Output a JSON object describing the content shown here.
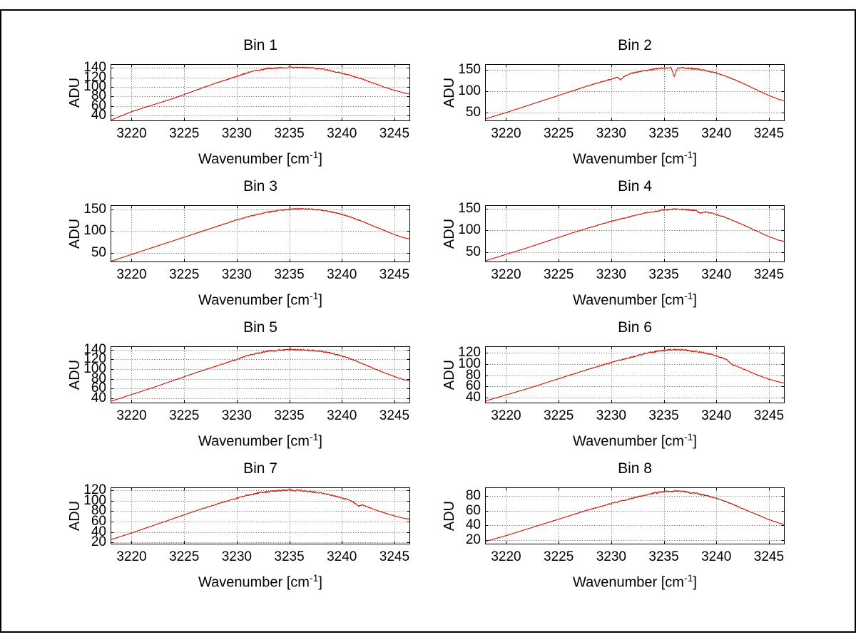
{
  "figure": {
    "background": "#ffffff",
    "frame_color": "#000000"
  },
  "chart_data": [
    {
      "type": "line",
      "title": "Bin 1",
      "xlabel": "Wavenumber [cm^{-1}]",
      "ylabel": "ADU",
      "xlim": [
        3218,
        3246.5
      ],
      "ylim": [
        28,
        148
      ],
      "xticks": [
        3220,
        3225,
        3230,
        3235,
        3240,
        3245
      ],
      "yticks": [
        40,
        60,
        80,
        100,
        120,
        140
      ],
      "grid": true,
      "legend": null,
      "line_color": "#cc1100",
      "noise_amplitude": 1.8,
      "x": [
        3218,
        3220,
        3222,
        3224,
        3226,
        3228,
        3230,
        3231,
        3232,
        3233,
        3234,
        3235,
        3236,
        3237,
        3238,
        3239,
        3240,
        3241,
        3242,
        3243,
        3244,
        3245,
        3246,
        3246.5
      ],
      "y": [
        30,
        48,
        62,
        76,
        92,
        108,
        122,
        130,
        135,
        139,
        140,
        141,
        141,
        140,
        138,
        134,
        129,
        123,
        116,
        108,
        100,
        93,
        87,
        85
      ]
    },
    {
      "type": "line",
      "title": "Bin 2",
      "xlabel": "Wavenumber [cm^{-1}]",
      "ylabel": "ADU",
      "xlim": [
        3218,
        3246.5
      ],
      "ylim": [
        30,
        163
      ],
      "xticks": [
        3220,
        3225,
        3230,
        3235,
        3240,
        3245
      ],
      "yticks": [
        50,
        100,
        150
      ],
      "grid": true,
      "legend": null,
      "line_color": "#cc1100",
      "noise_amplitude": 2.0,
      "x": [
        3218,
        3220,
        3222,
        3224,
        3226,
        3228,
        3230,
        3230.6,
        3230.9,
        3231.2,
        3232,
        3233,
        3234,
        3235,
        3235.7,
        3236,
        3236.3,
        3237,
        3238,
        3239,
        3240,
        3241,
        3242,
        3243,
        3244,
        3245,
        3246,
        3246.5
      ],
      "y": [
        35,
        50,
        66,
        82,
        98,
        114,
        128,
        133,
        126,
        134,
        142,
        147,
        151,
        154,
        155,
        133,
        154,
        154,
        152,
        148,
        142,
        134,
        124,
        113,
        101,
        90,
        80,
        78
      ]
    },
    {
      "type": "line",
      "title": "Bin 3",
      "xlabel": "Wavenumber [cm^{-1}]",
      "ylabel": "ADU",
      "xlim": [
        3218,
        3246.5
      ],
      "ylim": [
        28,
        160
      ],
      "xticks": [
        3220,
        3225,
        3230,
        3235,
        3240,
        3245
      ],
      "yticks": [
        50,
        100,
        150
      ],
      "grid": true,
      "legend": null,
      "line_color": "#cc1100",
      "noise_amplitude": 1.8,
      "x": [
        3218,
        3220,
        3222,
        3224,
        3226,
        3228,
        3230,
        3231,
        3232,
        3233,
        3234,
        3235,
        3236,
        3237,
        3238,
        3239,
        3240,
        3241,
        3242,
        3243,
        3244,
        3245,
        3246,
        3246.5
      ],
      "y": [
        30,
        46,
        62,
        78,
        94,
        110,
        126,
        133,
        139,
        144,
        148,
        151,
        152,
        151,
        149,
        145,
        139,
        131,
        122,
        112,
        102,
        92,
        84,
        82
      ]
    },
    {
      "type": "line",
      "title": "Bin 4",
      "xlabel": "Wavenumber [cm^{-1}]",
      "ylabel": "ADU",
      "xlim": [
        3218,
        3246.5
      ],
      "ylim": [
        27,
        158
      ],
      "xticks": [
        3220,
        3225,
        3230,
        3235,
        3240,
        3245
      ],
      "yticks": [
        50,
        100,
        150
      ],
      "grid": true,
      "legend": null,
      "line_color": "#cc1100",
      "noise_amplitude": 1.8,
      "x": [
        3218,
        3220,
        3222,
        3224,
        3226,
        3228,
        3230,
        3232,
        3233,
        3234,
        3235,
        3236,
        3237,
        3238,
        3238.5,
        3239,
        3240,
        3241,
        3242,
        3243,
        3244,
        3245,
        3246,
        3246.5
      ],
      "y": [
        30,
        45,
        60,
        76,
        92,
        107,
        121,
        133,
        139,
        143,
        147,
        149,
        148,
        146,
        139,
        143,
        137,
        129,
        119,
        108,
        97,
        86,
        77,
        75
      ]
    },
    {
      "type": "line",
      "title": "Bin 5",
      "xlabel": "Wavenumber [cm^{-1}]",
      "ylabel": "ADU",
      "xlim": [
        3218,
        3246.5
      ],
      "ylim": [
        30,
        147
      ],
      "xticks": [
        3220,
        3225,
        3230,
        3235,
        3240,
        3245
      ],
      "yticks": [
        40,
        60,
        80,
        100,
        120,
        140
      ],
      "grid": true,
      "legend": null,
      "line_color": "#cc1100",
      "noise_amplitude": 1.8,
      "x": [
        3218,
        3220,
        3222,
        3224,
        3226,
        3228,
        3230,
        3231,
        3232,
        3233,
        3234,
        3235,
        3236,
        3237,
        3238,
        3239,
        3240,
        3241,
        3242,
        3243,
        3244,
        3245,
        3246,
        3246.5
      ],
      "y": [
        34,
        48,
        62,
        77,
        92,
        106,
        120,
        128,
        133,
        137,
        139,
        140,
        140,
        139,
        137,
        133,
        127,
        120,
        111,
        102,
        93,
        85,
        78,
        76
      ]
    },
    {
      "type": "line",
      "title": "Bin 6",
      "xlabel": "Wavenumber [cm^{-1}]",
      "ylabel": "ADU",
      "xlim": [
        3218,
        3246.5
      ],
      "ylim": [
        30,
        132
      ],
      "xticks": [
        3220,
        3225,
        3230,
        3235,
        3240,
        3245
      ],
      "yticks": [
        40,
        60,
        80,
        100,
        120
      ],
      "grid": true,
      "legend": null,
      "line_color": "#cc1100",
      "noise_amplitude": 1.8,
      "x": [
        3218,
        3220,
        3222,
        3224,
        3226,
        3228,
        3230,
        3232,
        3233,
        3234,
        3235,
        3236,
        3237,
        3238,
        3239,
        3240,
        3241,
        3241.6,
        3242,
        3243,
        3244,
        3245,
        3246,
        3246.5
      ],
      "y": [
        34,
        45,
        56,
        68,
        80,
        92,
        103,
        113,
        118,
        122,
        125,
        126,
        125,
        123,
        120,
        115,
        108,
        98,
        96,
        88,
        80,
        73,
        68,
        66
      ]
    },
    {
      "type": "line",
      "title": "Bin 7",
      "xlabel": "Wavenumber [cm^{-1}]",
      "ylabel": "ADU",
      "xlim": [
        3218,
        3246.5
      ],
      "ylim": [
        16,
        126
      ],
      "xticks": [
        3220,
        3225,
        3230,
        3235,
        3240,
        3245
      ],
      "yticks": [
        20,
        40,
        60,
        80,
        100,
        120
      ],
      "grid": true,
      "legend": null,
      "line_color": "#cc1100",
      "noise_amplitude": 1.8,
      "x": [
        3218,
        3220,
        3222,
        3224,
        3226,
        3228,
        3230,
        3231,
        3232,
        3233,
        3234,
        3235,
        3236,
        3237,
        3238,
        3239,
        3240,
        3241,
        3241.6,
        3242,
        3243,
        3244,
        3245,
        3246,
        3246.5
      ],
      "y": [
        25,
        38,
        52,
        66,
        80,
        93,
        105,
        111,
        115,
        118,
        120,
        121,
        120,
        118,
        115,
        111,
        106,
        99,
        90,
        92,
        84,
        77,
        71,
        66,
        65
      ]
    },
    {
      "type": "line",
      "title": "Bin 8",
      "xlabel": "Wavenumber [cm^{-1}]",
      "ylabel": "ADU",
      "xlim": [
        3218,
        3246.5
      ],
      "ylim": [
        14,
        92
      ],
      "xticks": [
        3220,
        3225,
        3230,
        3235,
        3240,
        3245
      ],
      "yticks": [
        20,
        40,
        60,
        80
      ],
      "grid": true,
      "legend": null,
      "line_color": "#cc1100",
      "noise_amplitude": 1.5,
      "x": [
        3218,
        3220,
        3222,
        3224,
        3226,
        3228,
        3230,
        3232,
        3233,
        3234,
        3235,
        3236,
        3237,
        3238,
        3239,
        3240,
        3241,
        3242,
        3243,
        3244,
        3245,
        3246,
        3246.5
      ],
      "y": [
        18,
        26,
        35,
        44,
        53,
        62,
        70,
        77,
        81,
        84,
        86,
        87,
        86,
        84,
        81,
        77,
        72,
        66,
        60,
        54,
        48,
        43,
        41
      ]
    }
  ]
}
